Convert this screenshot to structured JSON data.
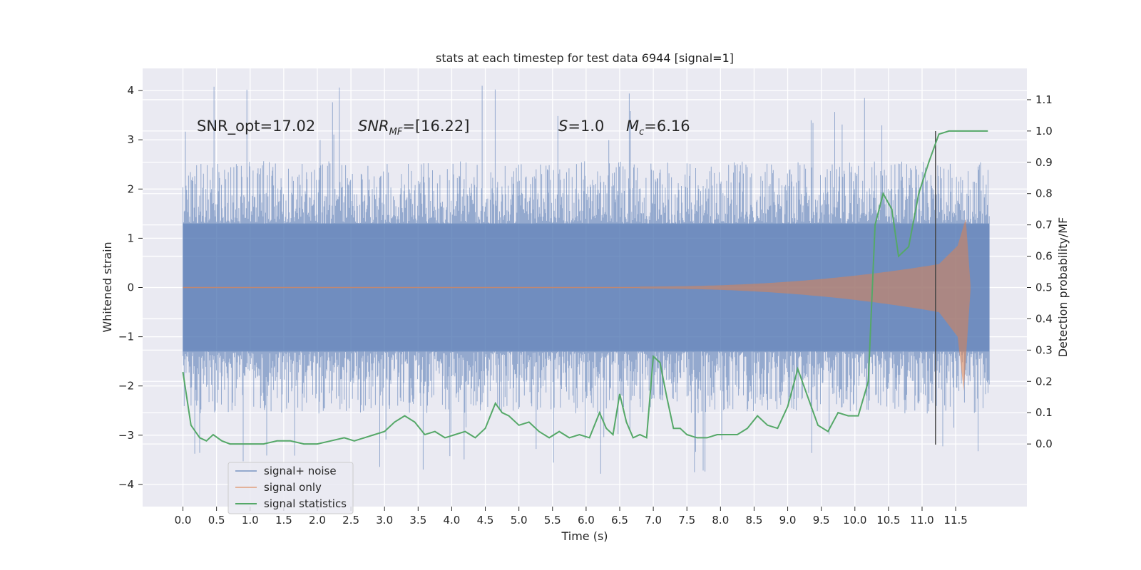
{
  "chart_data": {
    "type": "line",
    "title": "stats at each timestep for test data 6944 [signal=1]",
    "xlabel": "Time (s)",
    "ylabel": "Whitened strain",
    "ylabel_right": "Detection probability/MF",
    "xlim": [
      -0.6,
      12.56
    ],
    "ylim": [
      -4.45,
      4.45
    ],
    "ylim_right": [
      -0.2,
      1.2
    ],
    "x_ticks": [
      "0.0",
      "0.5",
      "1.0",
      "1.5",
      "2.0",
      "2.5",
      "3.0",
      "3.5",
      "4.0",
      "4.5",
      "5.0",
      "5.5",
      "6.0",
      "6.5",
      "7.0",
      "7.5",
      "8.0",
      "8.5",
      "9.0",
      "9.5",
      "10.0",
      "10.5",
      "11.0",
      "11.5"
    ],
    "y_ticks_left": [
      "4",
      "3",
      "2",
      "1",
      "0",
      "−1",
      "−2",
      "−3",
      "−4"
    ],
    "y_ticks_right": [
      "1.1",
      "1.0",
      "0.9",
      "0.8",
      "0.7",
      "0.6",
      "0.5",
      "0.4",
      "0.3",
      "0.2",
      "0.1",
      "0.0"
    ],
    "annotations": {
      "snr_opt": "SNR_opt=17.02",
      "snr_mf_sym": "SNR",
      "snr_mf_sub": "MF",
      "snr_mf_val": "=[16.22]",
      "s_sym": "S",
      "s_val": "=1.0",
      "mc_sym": "M",
      "mc_sub": "c",
      "mc_val": "=6.16"
    },
    "vertical_line_x": 11.2,
    "series": [
      {
        "name": "signal+ noise",
        "color": "#4c72b0",
        "kind": "noise",
        "duration": 12.0,
        "band_abs": 1.3,
        "typical_max": 2.4,
        "extreme_min": -3.8,
        "extreme_max": 4.1
      },
      {
        "name": "signal only",
        "color": "#dd8452",
        "kind": "chirp",
        "start": 6.8,
        "peak_time": 11.65,
        "end_time": 11.72,
        "peak_amp": 1.4,
        "min_amp": -2.1
      },
      {
        "name": "signal statistics",
        "color": "#55a868",
        "axis": "right",
        "x": [
          0.0,
          0.12,
          0.25,
          0.35,
          0.45,
          0.58,
          0.7,
          0.85,
          1.0,
          1.2,
          1.4,
          1.6,
          1.8,
          2.0,
          2.2,
          2.4,
          2.55,
          2.7,
          2.85,
          3.0,
          3.15,
          3.3,
          3.45,
          3.6,
          3.75,
          3.9,
          4.05,
          4.2,
          4.35,
          4.5,
          4.65,
          4.75,
          4.85,
          5.0,
          5.15,
          5.3,
          5.45,
          5.6,
          5.75,
          5.9,
          6.05,
          6.2,
          6.3,
          6.4,
          6.5,
          6.6,
          6.7,
          6.8,
          6.9,
          7.0,
          7.1,
          7.2,
          7.3,
          7.4,
          7.5,
          7.65,
          7.8,
          7.95,
          8.1,
          8.25,
          8.4,
          8.55,
          8.7,
          8.85,
          9.0,
          9.15,
          9.3,
          9.45,
          9.6,
          9.75,
          9.9,
          10.05,
          10.2,
          10.3,
          10.42,
          10.55,
          10.65,
          10.8,
          10.95,
          11.1,
          11.25,
          11.4,
          11.55,
          11.7,
          11.85,
          11.98
        ],
        "values": [
          0.23,
          0.06,
          0.02,
          0.01,
          0.03,
          0.01,
          0.0,
          0.0,
          0.0,
          0.0,
          0.01,
          0.01,
          0.0,
          0.0,
          0.01,
          0.02,
          0.01,
          0.02,
          0.03,
          0.04,
          0.07,
          0.09,
          0.07,
          0.03,
          0.04,
          0.02,
          0.03,
          0.04,
          0.02,
          0.05,
          0.13,
          0.1,
          0.09,
          0.06,
          0.07,
          0.04,
          0.02,
          0.04,
          0.02,
          0.03,
          0.02,
          0.1,
          0.05,
          0.03,
          0.16,
          0.07,
          0.02,
          0.03,
          0.02,
          0.28,
          0.26,
          0.15,
          0.05,
          0.05,
          0.03,
          0.02,
          0.02,
          0.03,
          0.03,
          0.03,
          0.05,
          0.09,
          0.06,
          0.05,
          0.12,
          0.24,
          0.15,
          0.06,
          0.04,
          0.1,
          0.09,
          0.09,
          0.2,
          0.7,
          0.8,
          0.75,
          0.6,
          0.63,
          0.8,
          0.9,
          0.99,
          1.0,
          1.0,
          1.0,
          1.0,
          1.0
        ]
      }
    ]
  }
}
